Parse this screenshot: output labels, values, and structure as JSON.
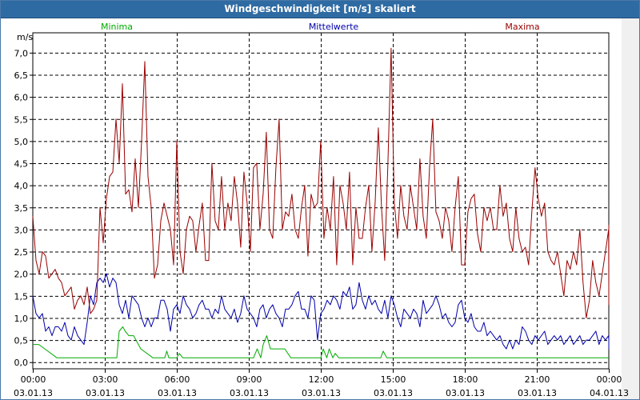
{
  "window": {
    "title": "Windgeschwindigkeit [m/s] skaliert"
  },
  "chart_data": {
    "type": "line",
    "title": "Windgeschwindigkeit [m/s] skaliert",
    "ylabel": "m/s",
    "xlabel": "",
    "ylim": [
      -0.15,
      7.45
    ],
    "xlim": [
      0,
      24
    ],
    "y_ticks": [
      {
        "v": 0.0,
        "label": "0,0"
      },
      {
        "v": 0.5,
        "label": "0,5"
      },
      {
        "v": 1.0,
        "label": "1,0"
      },
      {
        "v": 1.5,
        "label": "1,5"
      },
      {
        "v": 2.0,
        "label": "2,0"
      },
      {
        "v": 2.5,
        "label": "2,5"
      },
      {
        "v": 3.0,
        "label": "3,0"
      },
      {
        "v": 3.5,
        "label": "3,5"
      },
      {
        "v": 4.0,
        "label": "4,0"
      },
      {
        "v": 4.5,
        "label": "4,5"
      },
      {
        "v": 5.0,
        "label": "5,0"
      },
      {
        "v": 5.5,
        "label": "5,5"
      },
      {
        "v": 6.0,
        "label": "6,0"
      },
      {
        "v": 6.5,
        "label": "6,5"
      },
      {
        "v": 7.0,
        "label": "7,0"
      }
    ],
    "x_ticks": [
      {
        "h": 0,
        "time": "00:00",
        "date": "03.01.13"
      },
      {
        "h": 3,
        "time": "03:00",
        "date": "03.01.13"
      },
      {
        "h": 6,
        "time": "06:00",
        "date": "03.01.13"
      },
      {
        "h": 9,
        "time": "09:00",
        "date": "03.01.13"
      },
      {
        "h": 12,
        "time": "12:00",
        "date": "03.01.13"
      },
      {
        "h": 15,
        "time": "15:00",
        "date": "03.01.13"
      },
      {
        "h": 18,
        "time": "18:00",
        "date": "03.01.13"
      },
      {
        "h": 21,
        "time": "21:00",
        "date": "03.01.13"
      },
      {
        "h": 24,
        "time": "00:00",
        "date": "04.01.13"
      }
    ],
    "grid": true,
    "legend_position": "top",
    "series": [
      {
        "name": "Minima",
        "color": "#00aa00",
        "x": [
          0,
          0.25,
          0.5,
          1,
          1.5,
          2,
          2.5,
          3,
          3.25,
          3.5,
          3.6,
          3.75,
          3.85,
          4,
          4.1,
          4.2,
          4.3,
          4.5,
          5,
          5.5,
          5.5833,
          5.6667,
          6,
          6.1,
          6.25,
          6.5,
          7,
          8,
          9,
          9.2,
          9.35,
          9.5,
          9.6,
          9.75,
          9.9,
          10,
          10.25,
          10.5,
          10.75,
          11,
          11.5,
          12,
          12.1,
          12.25,
          12.35,
          12.5,
          12.6,
          12.75,
          12.85,
          13,
          13.5,
          14,
          14.5,
          14.6,
          14.75,
          15,
          16,
          17,
          18,
          19,
          20,
          21,
          22,
          23,
          24
        ],
        "values": [
          0.4,
          0.4,
          0.3,
          0.1,
          0.1,
          0.1,
          0.1,
          0.1,
          0.1,
          0.1,
          0.7,
          0.8,
          0.7,
          0.6,
          0.6,
          0.6,
          0.5,
          0.3,
          0.1,
          0.1,
          0.25,
          0.1,
          0.1,
          0.2,
          0.1,
          0.1,
          0.1,
          0.1,
          0.1,
          0.1,
          0.3,
          0.1,
          0.4,
          0.6,
          0.3,
          0.3,
          0.3,
          0.3,
          0.1,
          0.1,
          0.1,
          0.1,
          0.3,
          0.1,
          0.3,
          0.1,
          0.2,
          0.1,
          0.1,
          0.1,
          0.1,
          0.1,
          0.1,
          0.25,
          0.1,
          0.1,
          0.1,
          0.1,
          0.1,
          0.1,
          0.1,
          0.1,
          0.1,
          0.1,
          0.1
        ]
      },
      {
        "name": "Mittelwerte",
        "color": "#0000aa",
        "x_start": 0,
        "x_step": 0.1333,
        "values": [
          1.5,
          1.1,
          1.0,
          1.1,
          0.7,
          0.8,
          0.6,
          0.8,
          0.8,
          0.7,
          0.9,
          0.6,
          0.5,
          0.8,
          0.6,
          0.5,
          0.4,
          0.9,
          1.5,
          1.3,
          1.8,
          1.9,
          1.8,
          2.0,
          1.7,
          1.9,
          1.8,
          1.3,
          1.1,
          1.4,
          1.0,
          1.5,
          1.4,
          1.3,
          1.0,
          0.8,
          1.0,
          0.8,
          1.0,
          1.0,
          1.4,
          1.4,
          1.2,
          0.7,
          1.2,
          1.3,
          1.1,
          1.5,
          1.3,
          1.2,
          1.0,
          1.1,
          1.3,
          1.4,
          1.2,
          1.2,
          1.0,
          1.2,
          1.1,
          1.5,
          1.2,
          1.1,
          1.0,
          1.2,
          0.9,
          1.1,
          1.5,
          1.2,
          1.1,
          1.0,
          0.8,
          1.2,
          1.3,
          1.0,
          1.2,
          1.3,
          1.1,
          1.0,
          0.8,
          1.2,
          1.2,
          1.3,
          1.5,
          1.6,
          1.2,
          1.2,
          1.0,
          1.5,
          1.4,
          0.5,
          1.1,
          1.2,
          1.4,
          1.3,
          1.5,
          1.4,
          1.2,
          1.6,
          1.5,
          1.7,
          1.2,
          1.3,
          1.8,
          1.4,
          1.2,
          1.5,
          1.3,
          1.4,
          1.2,
          1.1,
          1.4,
          1.0,
          1.5,
          1.3,
          1.0,
          0.8,
          1.2,
          1.1,
          1.0,
          1.2,
          1.1,
          0.8,
          1.4,
          1.1,
          1.2,
          1.3,
          1.5,
          1.3,
          1.0,
          1.1,
          0.9,
          0.8,
          0.9,
          1.3,
          1.4,
          1.0,
          0.9,
          1.1,
          0.8,
          0.7,
          0.7,
          0.9,
          0.6,
          0.7,
          0.6,
          0.5,
          0.6,
          0.4,
          0.3,
          0.5,
          0.3,
          0.5,
          0.4,
          0.8,
          0.7,
          0.5,
          0.4,
          0.6,
          0.5,
          0.6,
          0.7,
          0.4,
          0.5,
          0.6,
          0.5,
          0.6,
          0.4,
          0.5,
          0.6,
          0.4,
          0.5,
          0.6,
          0.4,
          0.5,
          0.5,
          0.6,
          0.7,
          0.4,
          0.6,
          0.5,
          0.6,
          0.5,
          0.6,
          0.3,
          0.5,
          0.5
        ]
      },
      {
        "name": "Maxima",
        "color": "#990000",
        "x_start": 0,
        "x_step": 0.1333,
        "values": [
          3.3,
          2.3,
          2.0,
          2.5,
          2.4,
          1.9,
          2.0,
          2.1,
          1.9,
          1.8,
          1.5,
          1.6,
          1.7,
          1.2,
          1.4,
          1.5,
          1.3,
          1.7,
          1.1,
          1.2,
          1.4,
          3.5,
          2.7,
          3.7,
          4.2,
          4.3,
          5.5,
          4.5,
          6.3,
          3.8,
          3.9,
          3.4,
          4.6,
          3.5,
          5.0,
          6.8,
          4.2,
          3.5,
          1.9,
          2.2,
          3.2,
          3.6,
          3.3,
          3.0,
          2.2,
          5.0,
          2.5,
          2.0,
          3.0,
          3.3,
          3.2,
          2.5,
          3.1,
          3.6,
          2.3,
          2.3,
          4.5,
          3.2,
          3.0,
          4.2,
          3.0,
          3.6,
          3.2,
          4.2,
          3.6,
          2.6,
          4.3,
          3.6,
          2.5,
          4.4,
          4.5,
          3.0,
          3.8,
          5.2,
          3.0,
          2.8,
          4.4,
          5.5,
          3.0,
          3.4,
          3.3,
          3.8,
          3.0,
          2.8,
          3.5,
          4.0,
          2.4,
          3.8,
          3.5,
          3.6,
          5.0,
          2.8,
          3.5,
          3.0,
          4.2,
          2.2,
          4.0,
          3.6,
          3.0,
          4.3,
          2.2,
          3.5,
          2.8,
          2.8,
          3.5,
          4.0,
          2.5,
          3.6,
          5.3,
          3.5,
          2.3,
          4.5,
          7.1,
          3.6,
          2.8,
          4.0,
          3.3,
          3.0,
          4.0,
          3.5,
          3.0,
          4.6,
          3.3,
          2.8,
          4.4,
          5.5,
          3.4,
          3.2,
          2.8,
          3.5,
          3.2,
          2.5,
          3.5,
          4.2,
          2.2,
          2.2,
          3.4,
          3.7,
          3.8,
          2.9,
          2.5,
          3.5,
          3.2,
          3.5,
          3.0,
          3.0,
          4.0,
          3.3,
          3.6,
          2.8,
          2.5,
          3.5,
          2.8,
          2.5,
          2.6,
          2.2,
          3.4,
          4.4,
          3.7,
          3.3,
          3.6,
          2.5,
          2.3,
          2.2,
          2.5,
          2.0,
          1.5,
          2.3,
          2.1,
          2.5,
          2.2,
          3.0,
          1.8,
          1.0,
          1.4,
          2.3,
          1.8,
          1.5,
          2.0,
          2.5,
          3.0,
          1.7,
          2.8,
          1.8,
          3.1,
          2.1,
          1.3,
          2.3,
          1.3,
          2.0,
          2.3,
          2.5,
          2.8,
          1.8,
          2.5,
          1.8
        ]
      }
    ]
  }
}
